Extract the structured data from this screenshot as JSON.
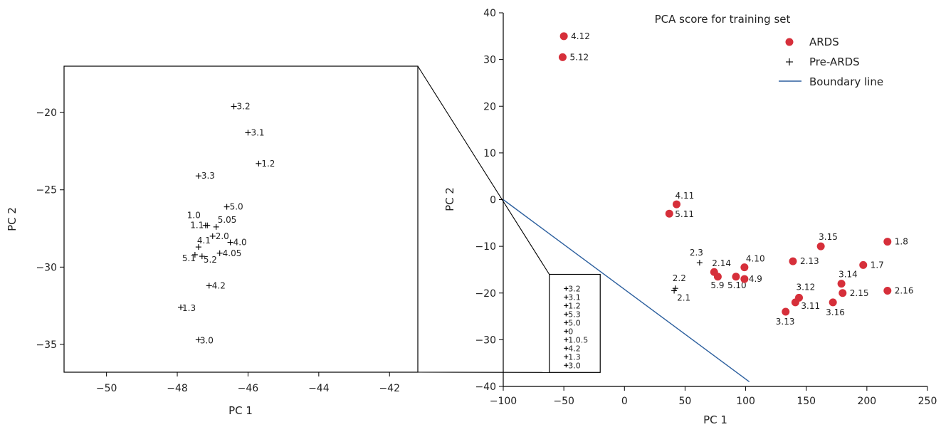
{
  "chart_data": [
    {
      "type": "scatter",
      "title": "",
      "xlabel": "PC 1",
      "ylabel": "PC 2",
      "xlim": [
        -51.2,
        -41.2
      ],
      "ylim": [
        -36.8,
        -17.0
      ],
      "xticks": [
        -50,
        -48,
        -46,
        -44,
        -42
      ],
      "yticks": [
        -20,
        -25,
        -30,
        -35
      ],
      "series": [
        {
          "name": "Pre-ARDS",
          "marker": "plus",
          "points": [
            {
              "label": "3.2",
              "x": -46.4,
              "y": -19.6
            },
            {
              "label": "3.1",
              "x": -46.0,
              "y": -21.3
            },
            {
              "label": "1.2",
              "x": -45.7,
              "y": -23.3
            },
            {
              "label": "3.3",
              "x": -47.4,
              "y": -24.1
            },
            {
              "label": "5.0",
              "x": -46.6,
              "y": -26.1
            },
            {
              "label": "1.0",
              "x": -47.2,
              "y": -27.3
            },
            {
              "label": "1.1",
              "x": -47.15,
              "y": -27.3
            },
            {
              "label": "5.05",
              "x": -46.9,
              "y": -27.4
            },
            {
              "label": "2.0",
              "x": -47.0,
              "y": -28.0
            },
            {
              "label": "4.0",
              "x": -46.5,
              "y": -28.4
            },
            {
              "label": "4.1",
              "x": -47.4,
              "y": -28.7
            },
            {
              "label": "4.05",
              "x": -46.8,
              "y": -29.1
            },
            {
              "label": "5.1",
              "x": -47.5,
              "y": -29.2
            },
            {
              "label": "5.2",
              "x": -47.3,
              "y": -29.3
            },
            {
              "label": "4.2",
              "x": -47.1,
              "y": -31.2
            },
            {
              "label": "1.3",
              "x": -47.9,
              "y": -32.6
            },
            {
              "label": "3.0",
              "x": -47.4,
              "y": -34.7
            }
          ]
        }
      ]
    },
    {
      "type": "scatter",
      "title": "PCA score for training set",
      "xlabel": "PC 1",
      "ylabel": "PC 2",
      "xlim": [
        -100,
        250
      ],
      "ylim": [
        -40,
        40
      ],
      "xticks": [
        -100,
        -50,
        0,
        50,
        100,
        150,
        200,
        250
      ],
      "yticks": [
        40,
        30,
        20,
        10,
        0,
        -10,
        -20,
        -30,
        -40
      ],
      "legend": {
        "position": "top-right"
      },
      "boundary_line": {
        "name": "Boundary line",
        "x": [
          -100,
          103
        ],
        "y": [
          0,
          -39
        ]
      },
      "inset_region": {
        "x": [
          -62,
          -20
        ],
        "y": [
          -37,
          -16
        ]
      },
      "inset_labels": [
        "3.2",
        "3.1",
        "1.2",
        "5.3",
        "5.0",
        "0",
        "1.0.5",
        "4.2",
        "1.3",
        "3.0"
      ],
      "series": [
        {
          "name": "ARDS",
          "color": "#d62f3a",
          "marker": "circle",
          "points": [
            {
              "label": "4.12",
              "x": -50,
              "y": 35
            },
            {
              "label": "5.12",
              "x": -51,
              "y": 30.5
            },
            {
              "label": "4.11",
              "x": 43,
              "y": -1
            },
            {
              "label": "5.11",
              "x": 37,
              "y": -3
            },
            {
              "label": "2.14",
              "x": 74,
              "y": -15.5
            },
            {
              "label": "5.9",
              "x": 77,
              "y": -16.5
            },
            {
              "label": "4.10",
              "x": 99,
              "y": -14.5
            },
            {
              "label": "5.10",
              "x": 92,
              "y": -16.5
            },
            {
              "label": "4.9",
              "x": 99,
              "y": -17
            },
            {
              "label": "2.13",
              "x": 139,
              "y": -13.2
            },
            {
              "label": "3.15",
              "x": 162,
              "y": -10
            },
            {
              "label": "1.8",
              "x": 217,
              "y": -9
            },
            {
              "label": "1.7",
              "x": 197,
              "y": -14
            },
            {
              "label": "3.14",
              "x": 179,
              "y": -18
            },
            {
              "label": "2.15",
              "x": 180,
              "y": -20
            },
            {
              "label": "3.12",
              "x": 144,
              "y": -21
            },
            {
              "label": "3.11",
              "x": 141,
              "y": -22
            },
            {
              "label": "3.13",
              "x": 133,
              "y": -24
            },
            {
              "label": "3.16",
              "x": 172,
              "y": -22
            },
            {
              "label": "2.16",
              "x": 217,
              "y": -19.5
            }
          ]
        },
        {
          "name": "Pre-ARDS",
          "marker": "plus",
          "points": [
            {
              "label": "2.3",
              "x": 62,
              "y": -13.5
            },
            {
              "label": "2.2",
              "x": 42,
              "y": -19
            },
            {
              "label": "2.1",
              "x": 41,
              "y": -19.5
            }
          ]
        }
      ]
    }
  ]
}
